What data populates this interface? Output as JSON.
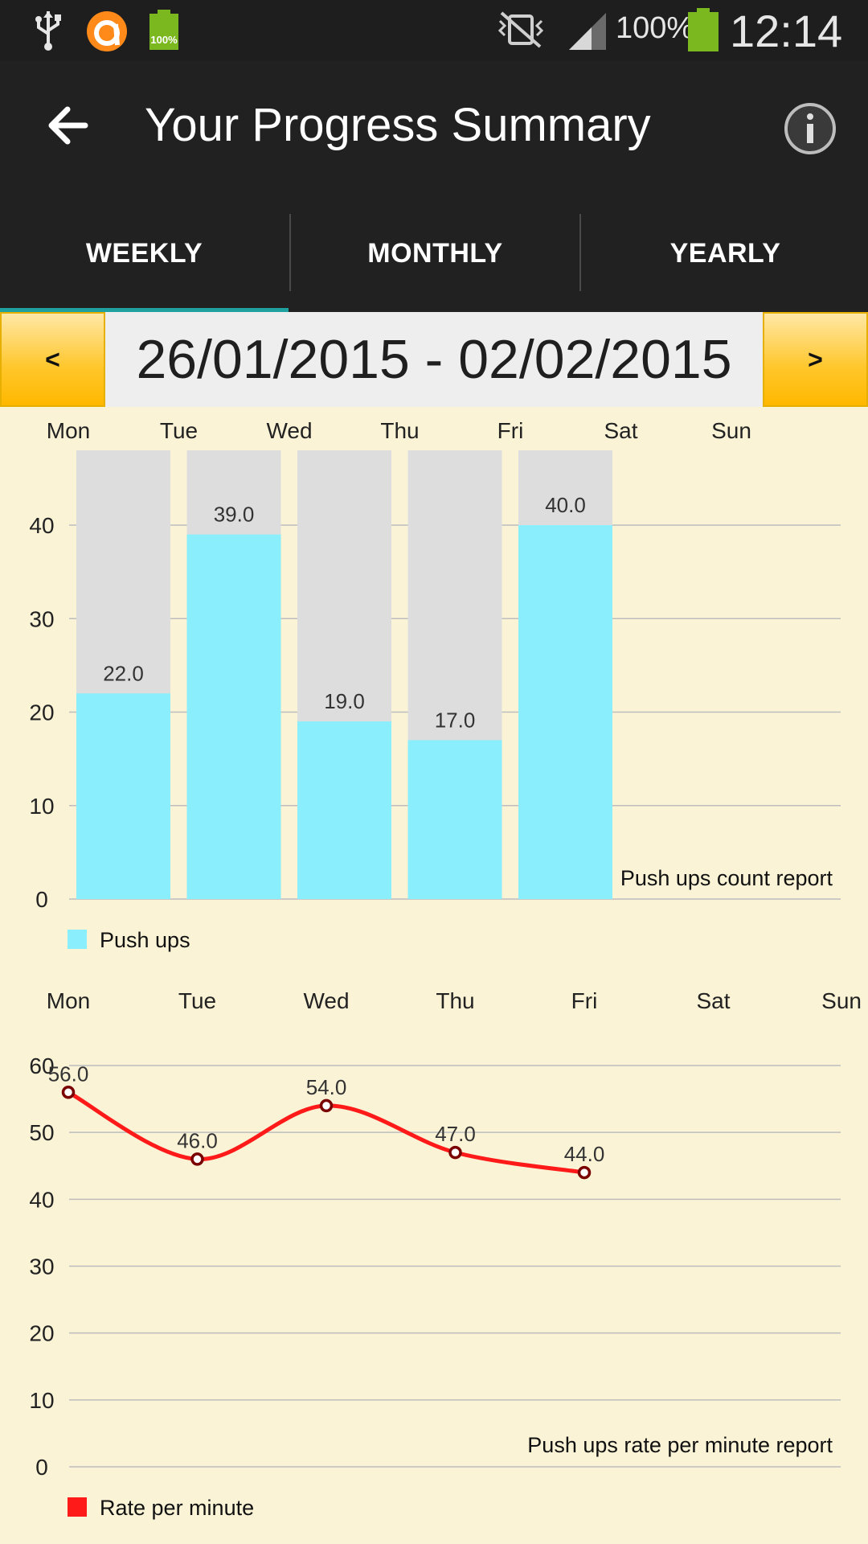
{
  "status_bar": {
    "battery_small_label": "100%",
    "battery_percent": "100%",
    "time": "12:14",
    "icons": [
      "usb-icon",
      "app-notification-icon",
      "battery-charging-icon",
      "vibrate-off-icon",
      "signal-icon",
      "battery-icon"
    ]
  },
  "app_bar": {
    "title": "Your Progress Summary",
    "back_icon": "arrow-left-icon",
    "info_icon": "info-icon"
  },
  "tabs": [
    {
      "label": "WEEKLY",
      "selected": true
    },
    {
      "label": "MONTHLY",
      "selected": false
    },
    {
      "label": "YEARLY",
      "selected": false
    }
  ],
  "date_nav": {
    "prev_label": "<",
    "range": "26/01/2015 - 02/02/2015",
    "next_label": ">"
  },
  "chart_data": [
    {
      "type": "bar",
      "categories": [
        "Mon",
        "Tue",
        "Wed",
        "Thu",
        "Fri",
        "Sat",
        "Sun"
      ],
      "series": [
        {
          "name": "Push ups",
          "values": [
            22.0,
            39.0,
            19.0,
            17.0,
            40.0,
            null,
            null
          ],
          "color": "#8aeefc"
        }
      ],
      "data_labels": [
        "22.0",
        "39.0",
        "19.0",
        "17.0",
        "40.0"
      ],
      "background_bar_color": "#dddddd",
      "ylim": [
        0,
        48
      ],
      "yticks": [
        0,
        10,
        20,
        30,
        40
      ],
      "annotation": "Push ups count report",
      "grid": true,
      "legend": "bottom-left"
    },
    {
      "type": "line",
      "categories": [
        "Mon",
        "Tue",
        "Wed",
        "Thu",
        "Fri",
        "Sat",
        "Sun"
      ],
      "series": [
        {
          "name": "Rate per minute",
          "values": [
            56.0,
            46.0,
            54.0,
            47.0,
            44.0,
            null,
            null
          ],
          "color": "#ff1a1a"
        }
      ],
      "data_labels": [
        "56.0",
        "46.0",
        "54.0",
        "47.0",
        "44.0"
      ],
      "ylim": [
        0,
        60
      ],
      "yticks": [
        0,
        10,
        20,
        30,
        40,
        50,
        60
      ],
      "annotation": "Push ups rate per minute report",
      "grid": true,
      "legend": "bottom-left"
    }
  ]
}
